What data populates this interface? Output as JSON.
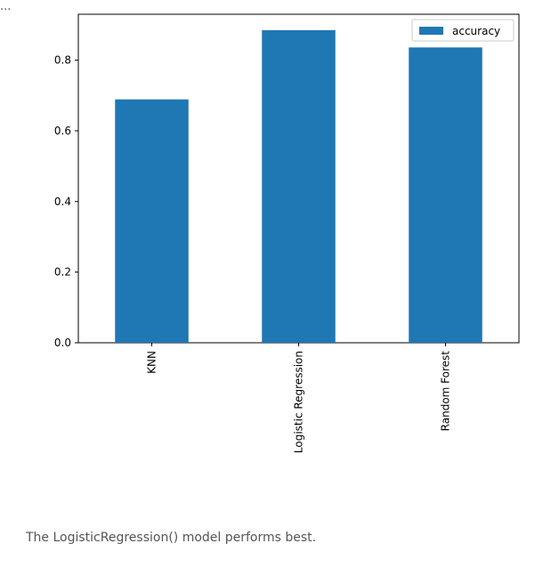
{
  "output": {
    "ellipsis": "...",
    "note": "The LogisticRegression() model performs best."
  },
  "chart_data": {
    "type": "bar",
    "categories": [
      "KNN",
      "Logistic Regression",
      "Random Forest"
    ],
    "series": [
      {
        "name": "accuracy",
        "values": [
          0.689,
          0.885,
          0.836
        ],
        "color": "#1f77b4"
      }
    ],
    "yticks": [
      "0.0",
      "0.2",
      "0.4",
      "0.6",
      "0.8"
    ],
    "ylim": [
      0,
      0.93
    ],
    "legend": "top-right",
    "grid": false,
    "xlabel": "",
    "ylabel": "",
    "title": ""
  }
}
